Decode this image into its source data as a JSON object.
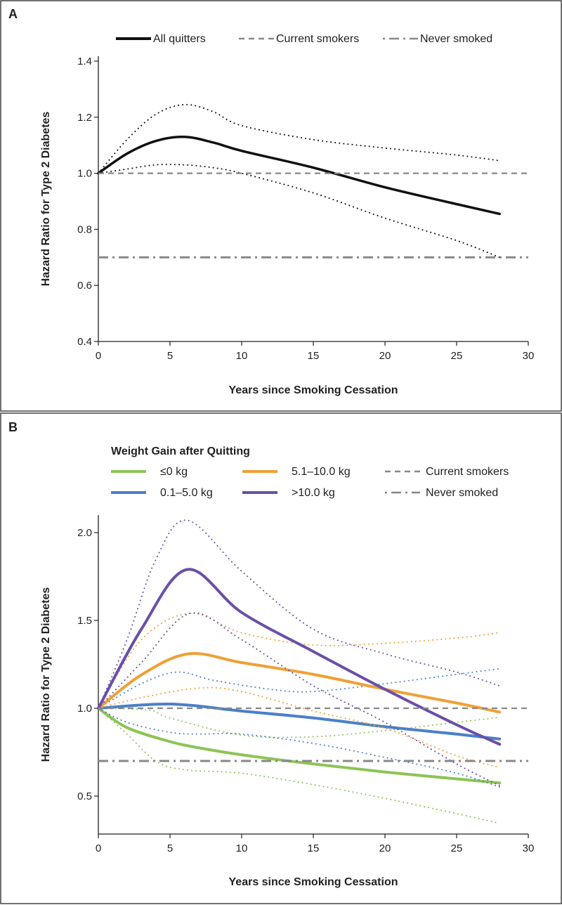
{
  "chart_data": [
    {
      "panel": "A",
      "type": "line",
      "xlabel": "Years since Smoking Cessation",
      "ylabel": "Hazard Ratio for Type 2 Diabetes",
      "xlim": [
        0,
        30
      ],
      "ylim": [
        0.4,
        1.4
      ],
      "xticks": [
        "0",
        "5",
        "10",
        "15",
        "20",
        "25",
        "30"
      ],
      "yticks": [
        "0.4",
        "0.6",
        "0.8",
        "1.0",
        "1.2",
        "1.4"
      ],
      "grid": false,
      "legend_placement": "top",
      "series": [
        {
          "name": "All quitters",
          "color": "#111111",
          "style": "solid",
          "x": [
            0,
            2,
            4,
            6,
            8,
            10,
            15,
            20,
            25,
            28
          ],
          "y": [
            1.0,
            1.07,
            1.115,
            1.13,
            1.11,
            1.08,
            1.02,
            0.95,
            0.89,
            0.855
          ],
          "ci_upper": [
            1.0,
            1.12,
            1.21,
            1.245,
            1.22,
            1.17,
            1.12,
            1.09,
            1.065,
            1.045
          ],
          "ci_lower": [
            1.0,
            1.015,
            1.03,
            1.03,
            1.02,
            1.0,
            0.93,
            0.84,
            0.76,
            0.7
          ]
        },
        {
          "name": "Current smokers",
          "color": "#888888",
          "style": "dashed",
          "value": 1.0
        },
        {
          "name": "Never smoked",
          "color": "#888888",
          "style": "dash-dot",
          "value": 0.7
        }
      ]
    },
    {
      "panel": "B",
      "type": "line",
      "legend_title": "Weight Gain after Quitting",
      "xlabel": "Years since Smoking Cessation",
      "ylabel": "Hazard Ratio for Type 2 Diabetes",
      "xlim": [
        0,
        30
      ],
      "ylim": [
        0.28,
        2.1
      ],
      "xticks": [
        "0",
        "5",
        "10",
        "15",
        "20",
        "25",
        "30"
      ],
      "yticks": [
        "0.5",
        "1.0",
        "1.5",
        "2.0"
      ],
      "grid": false,
      "legend_placement": "top",
      "series": [
        {
          "name": "≤0 kg",
          "color": "#8dc455",
          "style": "solid",
          "x": [
            0,
            2,
            5,
            7,
            10,
            15,
            20,
            25,
            28
          ],
          "y": [
            1.0,
            0.89,
            0.81,
            0.775,
            0.735,
            0.683,
            0.637,
            0.598,
            0.575
          ],
          "ci_upper_x": [
            0,
            3.5,
            5,
            10,
            15,
            20,
            25,
            28
          ],
          "ci_upper": [
            1.0,
            0.99,
            0.945,
            0.847,
            0.838,
            0.873,
            0.92,
            0.948
          ],
          "ci_lower_x": [
            0,
            2,
            4,
            6,
            10,
            15,
            20,
            25,
            28
          ],
          "ci_lower": [
            1.0,
            0.853,
            0.7,
            0.65,
            0.63,
            0.565,
            0.487,
            0.4,
            0.345
          ]
        },
        {
          "name": "0.1–5.0 kg",
          "color": "#4a80c8",
          "style": "solid",
          "x": [
            0,
            5,
            10,
            15,
            20,
            25,
            28
          ],
          "y": [
            1.0,
            1.024,
            0.984,
            0.945,
            0.895,
            0.853,
            0.825
          ],
          "ci_upper_x": [
            0,
            3,
            5.5,
            8,
            12,
            15,
            20,
            25,
            28
          ],
          "ci_upper": [
            1.0,
            1.14,
            1.206,
            1.16,
            1.108,
            1.095,
            1.14,
            1.193,
            1.225
          ],
          "ci_lower_x": [
            0,
            2,
            5,
            7,
            10,
            15,
            20,
            25,
            28
          ],
          "ci_lower": [
            1.0,
            0.92,
            0.863,
            0.853,
            0.853,
            0.8,
            0.72,
            0.63,
            0.552
          ]
        },
        {
          "name": "5.1–10.0 kg",
          "color": "#f0a035",
          "style": "solid",
          "x": [
            0,
            3,
            6.3,
            10,
            15,
            20,
            25,
            28
          ],
          "y": [
            1.0,
            1.19,
            1.31,
            1.26,
            1.193,
            1.108,
            1.03,
            0.978
          ],
          "ci_upper_x": [
            0,
            3,
            6.4,
            10,
            15,
            20,
            25,
            28
          ],
          "ci_upper": [
            1.0,
            1.39,
            1.54,
            1.43,
            1.36,
            1.37,
            1.4,
            1.43
          ],
          "ci_lower_x": [
            0,
            3,
            7,
            10,
            15,
            20,
            25,
            28
          ],
          "ci_lower": [
            1.0,
            1.06,
            1.115,
            1.095,
            0.984,
            0.886,
            0.73,
            0.663
          ]
        },
        {
          "name": ">10.0 kg",
          "color": "#6a4fa8",
          "style": "solid",
          "x": [
            0,
            3,
            6.2,
            10,
            15,
            20,
            25,
            28
          ],
          "y": [
            1.0,
            1.45,
            1.79,
            1.545,
            1.323,
            1.108,
            0.906,
            0.795
          ],
          "ci_upper_x": [
            0,
            2,
            4,
            6.2,
            10,
            15,
            20,
            25,
            28
          ],
          "ci_upper": [
            1.0,
            1.39,
            1.845,
            2.07,
            1.78,
            1.45,
            1.31,
            1.206,
            1.128
          ],
          "ci_lower_x": [
            0,
            3,
            6.4,
            10,
            15,
            20,
            25,
            28
          ],
          "ci_lower": [
            1.0,
            1.26,
            1.54,
            1.39,
            1.128,
            0.92,
            0.683,
            0.56
          ]
        },
        {
          "name": "Current smokers",
          "color": "#888888",
          "style": "dashed",
          "value": 1.0
        },
        {
          "name": "Never smoked",
          "color": "#888888",
          "style": "dash-dot",
          "value": 0.7
        }
      ]
    }
  ]
}
